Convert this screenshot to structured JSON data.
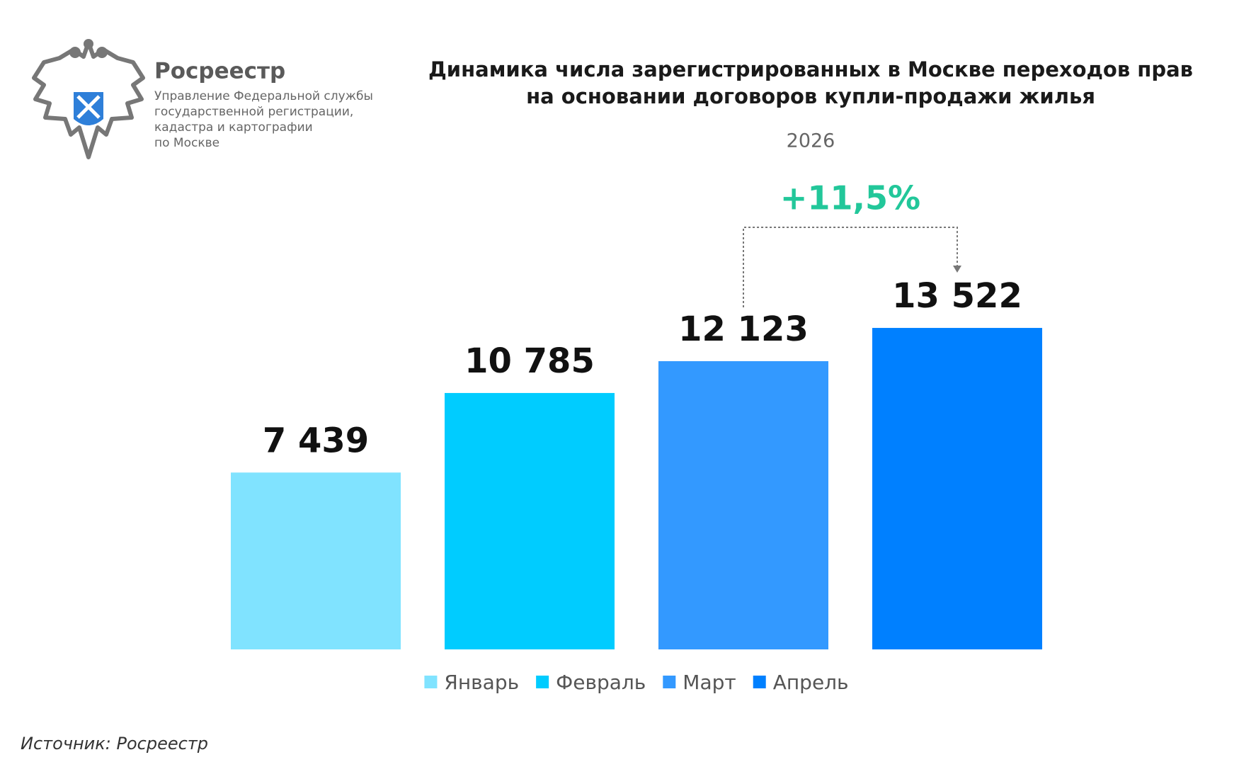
{
  "header": {
    "brand": "Росреестр",
    "lines": [
      "Управление Федеральной службы",
      "государственной регистрации,",
      "кадастра и картографии",
      "по Москве"
    ]
  },
  "chart_data": {
    "type": "bar",
    "title": [
      "Динамика числа зарегистрированных в Москве переходов прав",
      "на основании договоров купли-продажи жилья"
    ],
    "categories": [
      "2026"
    ],
    "series": [
      {
        "name": "Январь",
        "color": "#80e3ff",
        "values": [
          7439
        ],
        "value_labels": [
          "7 439"
        ]
      },
      {
        "name": "Февраль",
        "color": "#00ccff",
        "values": [
          10785
        ],
        "value_labels": [
          "10 785"
        ]
      },
      {
        "name": "Март",
        "color": "#3399ff",
        "values": [
          12123
        ],
        "value_labels": [
          "12 123"
        ]
      },
      {
        "name": "Апрель",
        "color": "#0080ff",
        "values": [
          13522
        ],
        "value_labels": [
          "13 522"
        ]
      }
    ],
    "ylim": [
      0,
      14000
    ],
    "annotation": "+11,5%",
    "annotation_color": "#22c79a",
    "legend": "bottom"
  },
  "source": "Источник: Росреестр"
}
